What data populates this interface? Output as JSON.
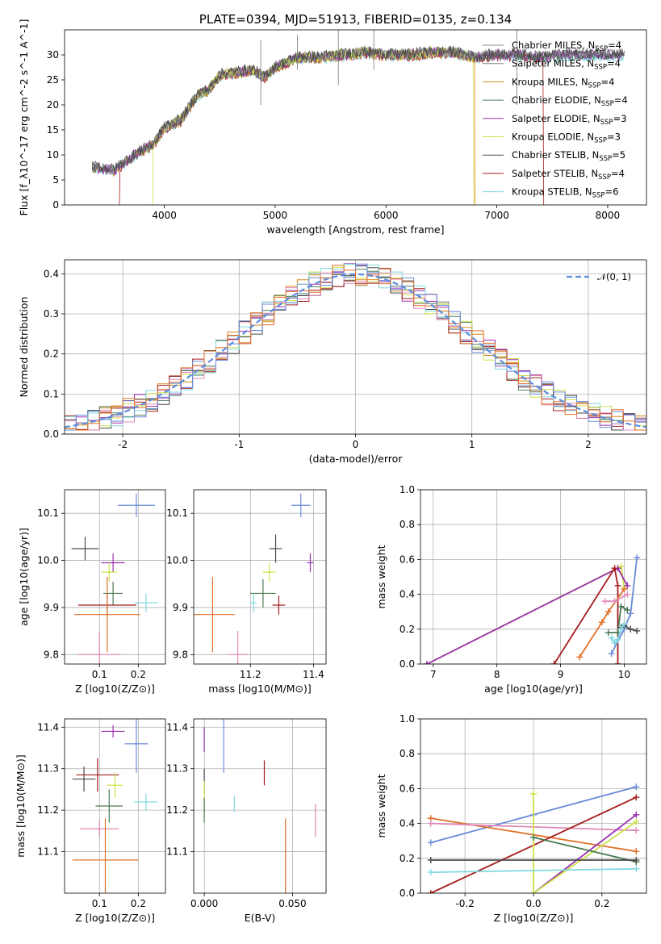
{
  "colors": {
    "Chabrier MILES": "#8c8c8c",
    "Salpeter MILES": "#7f7f7f",
    "Kroupa MILES": "#d68a1a",
    "Chabrier ELODIE": "#4f7f5f",
    "Salpeter ELODIE": "#9b30b0",
    "Kroupa ELODIE": "#cce24a",
    "Chabrier STELIB": "#4a4a4a",
    "Salpeter STELIB": "#a51c1c",
    "Kroupa STELIB": "#80d8e0",
    "normal": "#5b8ddd",
    "blue": "#6a8ad8",
    "orange": "#e07028",
    "pink": "#e088b8",
    "darkgreen": "#4a7a52",
    "gray": "#555555"
  },
  "chart_data": [
    {
      "id": "spectrum",
      "type": "line",
      "title": "PLATE=0394, MJD=51913, FIBERID=0135, z=0.134",
      "xlabel": "wavelength [Angstrom, rest frame]",
      "ylabel": "Flux [f_λ10^-17 erg cm^-2 s^-1 A^-1]",
      "xlim": [
        3100,
        8350
      ],
      "ylim": [
        0,
        35
      ],
      "xticks": [
        4000,
        5000,
        6000,
        7000,
        8000
      ],
      "yticks": [
        0,
        5,
        10,
        15,
        20,
        25,
        30
      ],
      "spectrum_anchor_points": {
        "x": [
          3350,
          3550,
          3700,
          3800,
          3900,
          4000,
          4150,
          4300,
          4400,
          4500,
          4650,
          4800,
          4900,
          5000,
          5200,
          5400,
          5600,
          5800,
          6000,
          6200,
          6400,
          6600,
          6800,
          7000,
          7200,
          7400,
          7600,
          7800,
          8000,
          8150
        ],
        "y": [
          7.5,
          7.0,
          9.5,
          11.0,
          12.0,
          15.5,
          17.0,
          22.0,
          23.0,
          26.0,
          26.5,
          27.0,
          25.5,
          27.5,
          29.5,
          29.5,
          30.0,
          30.5,
          30.0,
          30.0,
          30.5,
          30.5,
          29.5,
          30.0,
          30.0,
          29.5,
          30.0,
          30.0,
          30.0,
          30.0
        ]
      },
      "legend_position": "upper-right",
      "legend": [
        {
          "label": "Chabrier MILES, N",
          "sub": "SSP",
          "eq": "=4"
        },
        {
          "label": "Salpeter MILES, N",
          "sub": "SSP",
          "eq": "=4"
        },
        {
          "label": "Kroupa MILES, N",
          "sub": "SSP",
          "eq": "=4"
        },
        {
          "label": "Chabrier ELODIE, N",
          "sub": "SSP",
          "eq": "=4"
        },
        {
          "label": "Salpeter ELODIE, N",
          "sub": "SSP",
          "eq": "=3"
        },
        {
          "label": "Kroupa ELODIE, N",
          "sub": "SSP",
          "eq": "=3"
        },
        {
          "label": "Chabrier STELIB, N",
          "sub": "SSP",
          "eq": "=5"
        },
        {
          "label": "Salpeter STELIB, N",
          "sub": "SSP",
          "eq": "=4"
        },
        {
          "label": "Kroupa STELIB, N",
          "sub": "SSP",
          "eq": "=6"
        }
      ]
    },
    {
      "id": "residuals",
      "type": "line",
      "xlabel": "(data-model)/error",
      "ylabel": "Normed distribution",
      "xlim": [
        -2.5,
        2.5
      ],
      "ylim": [
        0,
        0.435
      ],
      "xticks": [
        -2,
        -1,
        0,
        1,
        2
      ],
      "yticks": [
        0.0,
        0.1,
        0.2,
        0.3,
        0.4
      ],
      "grid": true,
      "legend_label": "𝒩(0, 1)",
      "legend_position": "upper-right",
      "bin_width": 0.1
    },
    {
      "id": "age_vs_Z",
      "type": "scatter",
      "xlabel": "Z [log10(Z/Z⊙)]",
      "ylabel": "age  [log10(age/yr)]",
      "xlim": [
        0.01,
        0.27
      ],
      "ylim": [
        9.78,
        10.15
      ],
      "xticks": [
        0.1,
        0.2
      ],
      "yticks": [
        9.8,
        9.9,
        10.0,
        10.1
      ],
      "points": [
        {
          "x": 0.195,
          "y": 10.117,
          "xerr": 0.048,
          "yerr": 0.025,
          "color": "blue"
        },
        {
          "x": 0.063,
          "y": 10.025,
          "xerr": 0.035,
          "yerr": 0.025,
          "color": "Chabrier STELIB"
        },
        {
          "x": 0.135,
          "y": 9.995,
          "xerr": 0.03,
          "yerr": 0.02,
          "color": "Salpeter ELODIE"
        },
        {
          "x": 0.125,
          "y": 9.975,
          "xerr": 0.02,
          "yerr": 0.02,
          "color": "Kroupa ELODIE"
        },
        {
          "x": 0.135,
          "y": 9.93,
          "xerr": 0.025,
          "yerr": 0.025,
          "color": "darkgreen"
        },
        {
          "x": 0.12,
          "y": 9.905,
          "xerr": 0.075,
          "yerr": 0.025,
          "color": "Salpeter STELIB"
        },
        {
          "x": 0.22,
          "y": 9.91,
          "xerr": 0.03,
          "yerr": 0.02,
          "color": "Kroupa STELIB"
        },
        {
          "x": 0.12,
          "y": 9.885,
          "xerr": 0.085,
          "yerr": 0.08,
          "color": "orange"
        },
        {
          "x": 0.1,
          "y": 9.8,
          "xerr": 0.055,
          "yerr": 0.05,
          "color": "pink"
        }
      ]
    },
    {
      "id": "age_vs_mass",
      "type": "scatter",
      "xlabel": "mass [log10(M/M⊙)]",
      "ylabel": "",
      "xlim": [
        11.02,
        11.44
      ],
      "ylim": [
        9.78,
        10.15
      ],
      "xticks": [
        11.2,
        11.4
      ],
      "yticks": [
        9.8,
        9.9,
        10.0,
        10.1
      ],
      "points": [
        {
          "x": 11.36,
          "y": 10.117,
          "xerr": 0.03,
          "yerr": 0.025,
          "color": "blue"
        },
        {
          "x": 11.28,
          "y": 10.025,
          "xerr": 0.02,
          "yerr": 0.03,
          "color": "Chabrier STELIB"
        },
        {
          "x": 11.39,
          "y": 9.995,
          "xerr": 0.01,
          "yerr": 0.02,
          "color": "Salpeter ELODIE"
        },
        {
          "x": 11.26,
          "y": 9.975,
          "xerr": 0.02,
          "yerr": 0.02,
          "color": "Kroupa ELODIE"
        },
        {
          "x": 11.24,
          "y": 9.93,
          "xerr": 0.04,
          "yerr": 0.03,
          "color": "darkgreen"
        },
        {
          "x": 11.29,
          "y": 9.905,
          "xerr": 0.02,
          "yerr": 0.02,
          "color": "Salpeter STELIB"
        },
        {
          "x": 11.21,
          "y": 9.91,
          "xerr": 0.01,
          "yerr": 0.02,
          "color": "Kroupa STELIB"
        },
        {
          "x": 11.08,
          "y": 9.885,
          "xerr": 0.07,
          "yerr": 0.08,
          "color": "orange"
        },
        {
          "x": 11.16,
          "y": 9.8,
          "xerr": 0.03,
          "yerr": 0.05,
          "color": "pink"
        }
      ]
    },
    {
      "id": "mass_weight_vs_age",
      "type": "line",
      "xlabel": "age  [log10(age/yr)]",
      "ylabel": "mass weight",
      "xlim": [
        6.8,
        10.35
      ],
      "ylim": [
        0,
        1.0
      ],
      "xticks": [
        7,
        8,
        9,
        10
      ],
      "yticks": [
        0.0,
        0.2,
        0.4,
        0.6,
        0.8,
        1.0
      ],
      "grid": true,
      "series": [
        {
          "color": "Kroupa ELODIE",
          "x": [
            6.9,
            9.95,
            10.0
          ],
          "y": [
            0.0,
            0.56,
            0.44
          ]
        },
        {
          "color": "Salpeter ELODIE",
          "x": [
            6.9,
            9.9,
            10.05
          ],
          "y": [
            0.0,
            0.55,
            0.45
          ]
        },
        {
          "color": "Salpeter STELIB",
          "x": [
            8.9,
            9.85,
            9.9,
            9.9
          ],
          "y": [
            0.0,
            0.55,
            0.45,
            0.0
          ]
        },
        {
          "color": "blue",
          "x": [
            9.8,
            10.0,
            10.1,
            10.2
          ],
          "y": [
            0.06,
            0.2,
            0.29,
            0.61
          ]
        },
        {
          "color": "orange",
          "x": [
            9.3,
            9.65,
            9.75,
            10.0
          ],
          "y": [
            0.04,
            0.24,
            0.3,
            0.43
          ]
        },
        {
          "color": "pink",
          "x": [
            9.7,
            9.85,
            10.05
          ],
          "y": [
            0.36,
            0.36,
            0.4
          ]
        },
        {
          "color": "darkgreen",
          "x": [
            9.75,
            9.9,
            9.95,
            10.05
          ],
          "y": [
            0.18,
            0.18,
            0.33,
            0.31
          ]
        },
        {
          "color": "Chabrier STELIB",
          "x": [
            9.95,
            10.0,
            10.1,
            10.2
          ],
          "y": [
            0.21,
            0.22,
            0.2,
            0.19
          ]
        },
        {
          "color": "Kroupa STELIB",
          "x": [
            9.8,
            9.85,
            9.9,
            9.95,
            10.0
          ],
          "y": [
            0.15,
            0.12,
            0.14,
            0.2,
            0.23
          ]
        }
      ]
    },
    {
      "id": "mass_vs_Z",
      "type": "scatter",
      "xlabel": "Z [log10(Z/Z⊙)]",
      "ylabel": "mass [log10(M/M⊙)]",
      "xlim": [
        0.01,
        0.27
      ],
      "ylim": [
        11.0,
        11.42
      ],
      "xticks": [
        0.1,
        0.2
      ],
      "yticks": [
        11.1,
        11.2,
        11.3,
        11.4
      ],
      "points": [
        {
          "x": 0.135,
          "y": 11.39,
          "xerr": 0.03,
          "yerr": 0.015,
          "color": "Salpeter ELODIE"
        },
        {
          "x": 0.195,
          "y": 11.36,
          "xerr": 0.03,
          "yerr": 0.07,
          "color": "blue"
        },
        {
          "x": 0.095,
          "y": 11.285,
          "xerr": 0.055,
          "yerr": 0.04,
          "color": "Salpeter STELIB"
        },
        {
          "x": 0.06,
          "y": 11.275,
          "xerr": 0.03,
          "yerr": 0.03,
          "color": "Chabrier STELIB"
        },
        {
          "x": 0.14,
          "y": 11.26,
          "xerr": 0.02,
          "yerr": 0.03,
          "color": "Kroupa ELODIE"
        },
        {
          "x": 0.22,
          "y": 11.22,
          "xerr": 0.03,
          "yerr": 0.02,
          "color": "Kroupa STELIB"
        },
        {
          "x": 0.125,
          "y": 11.21,
          "xerr": 0.035,
          "yerr": 0.04,
          "color": "darkgreen"
        },
        {
          "x": 0.1,
          "y": 11.155,
          "xerr": 0.05,
          "yerr": 0.02,
          "color": "pink"
        },
        {
          "x": 0.115,
          "y": 11.08,
          "xerr": 0.085,
          "yerr": 0.1,
          "color": "orange"
        }
      ]
    },
    {
      "id": "mass_vs_EBV",
      "type": "scatter",
      "xlabel": "E(B-V)",
      "ylabel": "",
      "xlim": [
        -0.006,
        0.069
      ],
      "ylim": [
        11.0,
        11.42
      ],
      "xticks": [
        0.0,
        0.05
      ],
      "xtick_labels": [
        "0.000",
        "0.050"
      ],
      "yticks": [
        11.1,
        11.2,
        11.3,
        11.4
      ],
      "points": [
        {
          "x": 0.0,
          "y": 11.37,
          "xerr": 0.0,
          "yerr": 0.03,
          "color": "Salpeter ELODIE"
        },
        {
          "x": 0.011,
          "y": 11.36,
          "xerr": 0.0,
          "yerr": 0.07,
          "color": "blue"
        },
        {
          "x": 0.034,
          "y": 11.29,
          "xerr": 0.0,
          "yerr": 0.03,
          "color": "Salpeter STELIB"
        },
        {
          "x": 0.0,
          "y": 11.27,
          "xerr": 0.0,
          "yerr": 0.03,
          "color": "Chabrier STELIB"
        },
        {
          "x": 0.0,
          "y": 11.23,
          "xerr": 0.0,
          "yerr": 0.04,
          "color": "Kroupa ELODIE"
        },
        {
          "x": 0.017,
          "y": 11.215,
          "xerr": 0.0,
          "yerr": 0.02,
          "color": "Kroupa STELIB"
        },
        {
          "x": 0.0,
          "y": 11.2,
          "xerr": 0.0,
          "yerr": 0.03,
          "color": "darkgreen"
        },
        {
          "x": 0.063,
          "y": 11.175,
          "xerr": 0.0,
          "yerr": 0.04,
          "color": "pink"
        },
        {
          "x": 0.046,
          "y": 11.08,
          "xerr": 0.0,
          "yerr": 0.1,
          "color": "orange"
        }
      ]
    },
    {
      "id": "mass_weight_vs_Z",
      "type": "line",
      "xlabel": "Z [log10(Z/Z⊙)]",
      "ylabel": "mass weight",
      "xlim": [
        -0.33,
        0.33
      ],
      "ylim": [
        0,
        1.0
      ],
      "xticks": [
        -0.2,
        0.0,
        0.2
      ],
      "yticks": [
        0.0,
        0.2,
        0.4,
        0.6,
        0.8,
        1.0
      ],
      "grid": true,
      "series": [
        {
          "color": "blue",
          "x": [
            -0.3,
            0.0,
            0.3
          ],
          "y": [
            0.29,
            0.45,
            0.61
          ]
        },
        {
          "color": "orange",
          "x": [
            -0.3,
            0.3
          ],
          "y": [
            0.43,
            0.24
          ]
        },
        {
          "color": "pink",
          "x": [
            -0.3,
            0.3
          ],
          "y": [
            0.4,
            0.36
          ]
        },
        {
          "color": "Salpeter STELIB",
          "x": [
            -0.3,
            0.3
          ],
          "y": [
            0.0,
            0.55
          ]
        },
        {
          "color": "Salpeter ELODIE",
          "x": [
            0.0,
            0.3
          ],
          "y": [
            0.0,
            0.45
          ]
        },
        {
          "color": "Kroupa ELODIE",
          "x": [
            0.0,
            0.0,
            0.3
          ],
          "y": [
            0.57,
            0.0,
            0.41
          ]
        },
        {
          "color": "darkgreen",
          "x": [
            0.0,
            0.3
          ],
          "y": [
            0.32,
            0.18
          ]
        },
        {
          "color": "Chabrier STELIB",
          "x": [
            -0.3,
            0.3
          ],
          "y": [
            0.19,
            0.19
          ]
        },
        {
          "color": "Kroupa STELIB",
          "x": [
            -0.3,
            0.3
          ],
          "y": [
            0.12,
            0.14
          ]
        }
      ]
    }
  ]
}
